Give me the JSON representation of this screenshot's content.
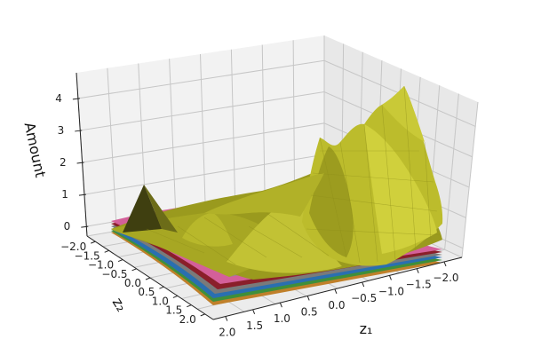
{
  "chart_data": {
    "type": "surface3d",
    "zlabel": "Amount",
    "xlabel": "z₁",
    "ylabel": "z₂",
    "x_ticks": [
      "2.0",
      "1.5",
      "1.0",
      "0.5",
      "0.0",
      "−0.5",
      "−1.0",
      "−1.5",
      "−2.0"
    ],
    "y_ticks": [
      "−2.0",
      "−1.5",
      "−1.0",
      "−0.5",
      "0.0",
      "0.5",
      "1.0",
      "1.5",
      "2.0"
    ],
    "z_ticks": [
      "0",
      "1",
      "2",
      "3",
      "4"
    ],
    "xlim": [
      -2.0,
      2.0
    ],
    "ylim": [
      -2.0,
      2.0
    ],
    "zlim": [
      -0.3,
      4.8
    ],
    "grid": true,
    "main_surface_color": "#b9b92a",
    "underlying_layer_colors": [
      "#d4609a",
      "#8a1f2a",
      "#7a7a7a",
      "#2a6fb0",
      "#3f8f3a",
      "#c0802a"
    ],
    "peaks": [
      {
        "z1": -1.1,
        "z2": -1.2,
        "amount": 4.5
      },
      {
        "z1": -0.4,
        "z2": -1.4,
        "amount": 3.3
      },
      {
        "z1": 1.9,
        "z2": -2.0,
        "amount": 2.0
      },
      {
        "z1": 0.6,
        "z2": -1.6,
        "amount": 1.4
      }
    ]
  }
}
